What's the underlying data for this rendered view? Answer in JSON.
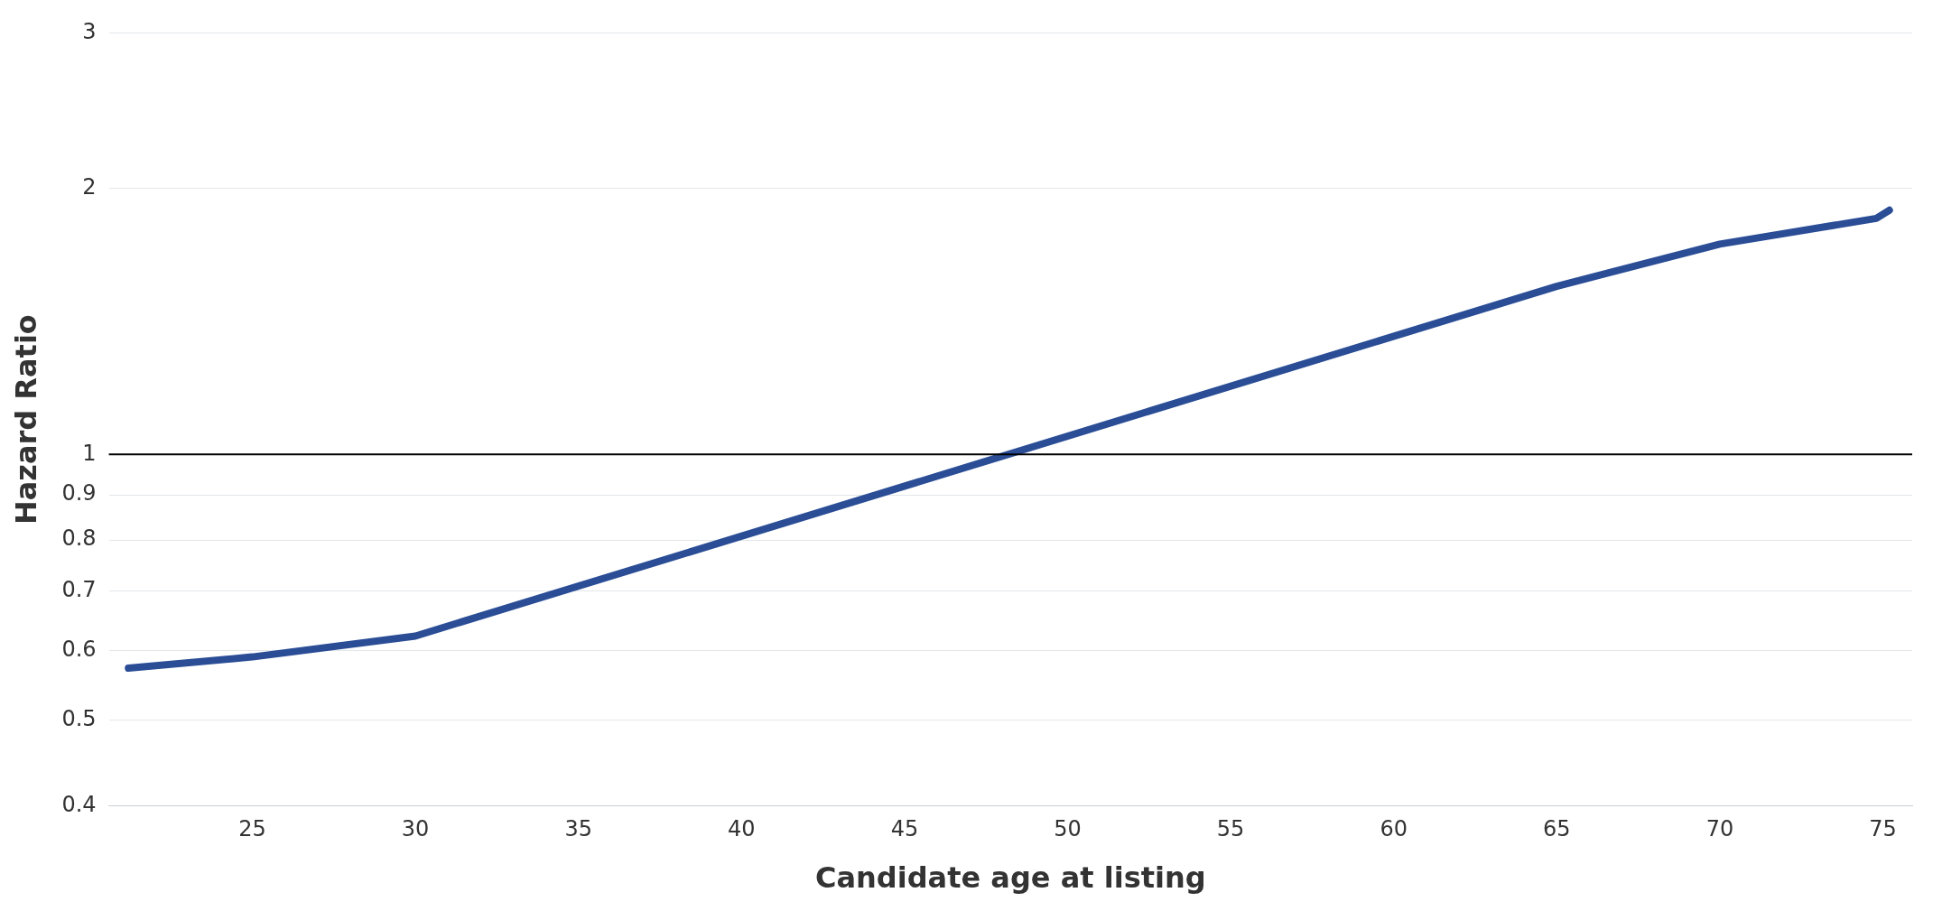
{
  "chart_data": {
    "type": "line",
    "xlabel": "Candidate age at listing",
    "ylabel": "Hazard Ratio",
    "x": [
      21.2,
      25,
      30,
      65,
      70,
      74.8,
      75.2
    ],
    "series": [
      {
        "color": "#2a4d96",
        "values": [
          0.573,
          0.59,
          0.623,
          1.55,
          1.73,
          1.85,
          1.89
        ]
      }
    ],
    "xlim": [
      20.6,
      75.9
    ],
    "xticks": [
      25,
      30,
      35,
      40,
      45,
      50,
      55,
      60,
      65,
      70,
      75
    ],
    "ylim": [
      0.4,
      3
    ],
    "yticks": [
      0.4,
      0.5,
      0.6,
      0.7,
      0.8,
      0.9,
      1,
      2,
      3
    ],
    "log": "y",
    "grid": "y",
    "legend": false,
    "marker": "none",
    "line_style": "solid",
    "ref_lines": [
      {
        "axis": "y",
        "value": 1,
        "color": "#000000"
      }
    ]
  }
}
